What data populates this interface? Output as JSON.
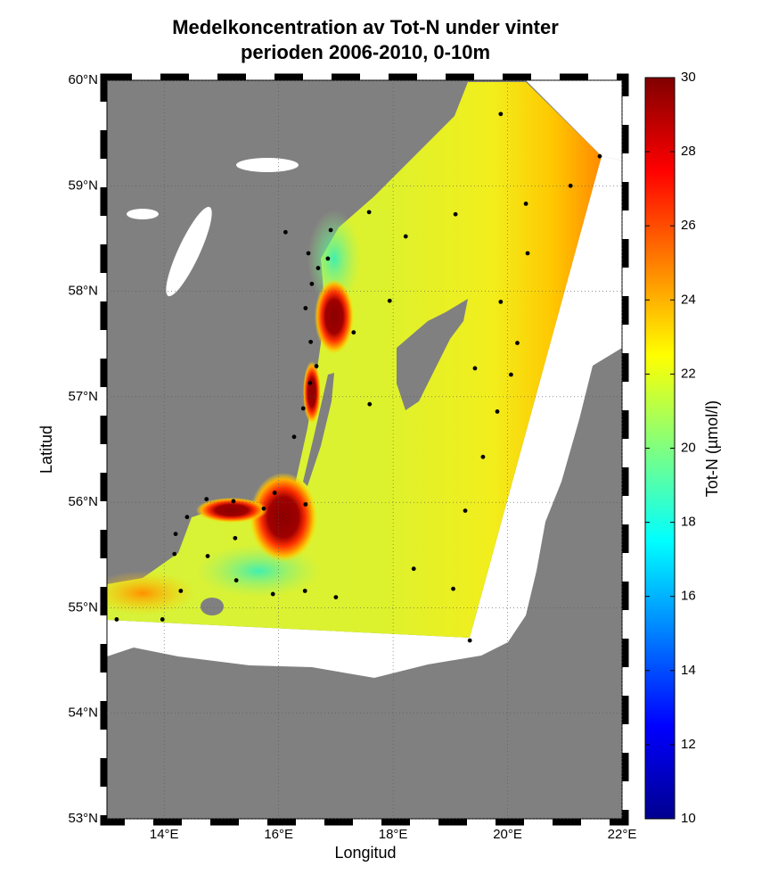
{
  "chart_data": {
    "type": "map",
    "title": [
      "Medelkoncentration av Tot-N under vinter",
      "perioden 2006-2010, 0-10m"
    ],
    "xlabel": "Longitud",
    "ylabel": "Latitud",
    "xlim": [
      13,
      22
    ],
    "ylim": [
      53,
      60
    ],
    "xticks": [
      {
        "value": 14,
        "label": "14°E"
      },
      {
        "value": 16,
        "label": "16°E"
      },
      {
        "value": 18,
        "label": "18°E"
      },
      {
        "value": 20,
        "label": "20°E"
      },
      {
        "value": 22,
        "label": "22°E"
      }
    ],
    "yticks": [
      {
        "value": 53,
        "label": "53°N"
      },
      {
        "value": 54,
        "label": "54°N"
      },
      {
        "value": 55,
        "label": "55°N"
      },
      {
        "value": 56,
        "label": "56°N"
      },
      {
        "value": 57,
        "label": "57°N"
      },
      {
        "value": 58,
        "label": "58°N"
      },
      {
        "value": 59,
        "label": "59°N"
      },
      {
        "value": 60,
        "label": "60°N"
      }
    ],
    "grid": true,
    "colorbar": {
      "label": "Tot-N (µmol/l)",
      "lim": [
        10,
        30
      ],
      "ticks": [
        10,
        12,
        14,
        16,
        18,
        20,
        22,
        24,
        26,
        28,
        30
      ]
    },
    "stations": {
      "color": "#000000",
      "lon": [
        19.88,
        21.61,
        21.1,
        20.32,
        19.09,
        17.58,
        18.22,
        20.35,
        17.94,
        19.88,
        17.31,
        20.17,
        19.43,
        20.06,
        17.59,
        19.82,
        19.57,
        19.26,
        18.36,
        19.05,
        19.34,
        17.0,
        16.46,
        15.9,
        15.26,
        15.24,
        14.76,
        14.29,
        14.18,
        14.2,
        14.4,
        13.97,
        13.17,
        14.74,
        15.21,
        15.74,
        16.47,
        15.93,
        16.27,
        16.43,
        16.55,
        16.66,
        16.56,
        16.47,
        16.58,
        16.69,
        16.86,
        16.52,
        16.12,
        16.91
      ],
      "lat": [
        59.68,
        59.28,
        59.0,
        58.83,
        58.73,
        58.75,
        58.52,
        58.36,
        57.91,
        57.9,
        57.61,
        57.51,
        57.27,
        57.21,
        56.93,
        56.86,
        56.43,
        55.92,
        55.37,
        55.18,
        54.69,
        55.1,
        55.16,
        55.13,
        55.26,
        55.66,
        55.49,
        55.16,
        55.51,
        55.7,
        55.86,
        54.89,
        54.89,
        56.03,
        56.01,
        55.94,
        55.98,
        56.09,
        56.62,
        56.89,
        57.13,
        57.29,
        57.52,
        57.84,
        58.07,
        58.22,
        58.31,
        58.36,
        58.56,
        58.58
      ]
    }
  }
}
